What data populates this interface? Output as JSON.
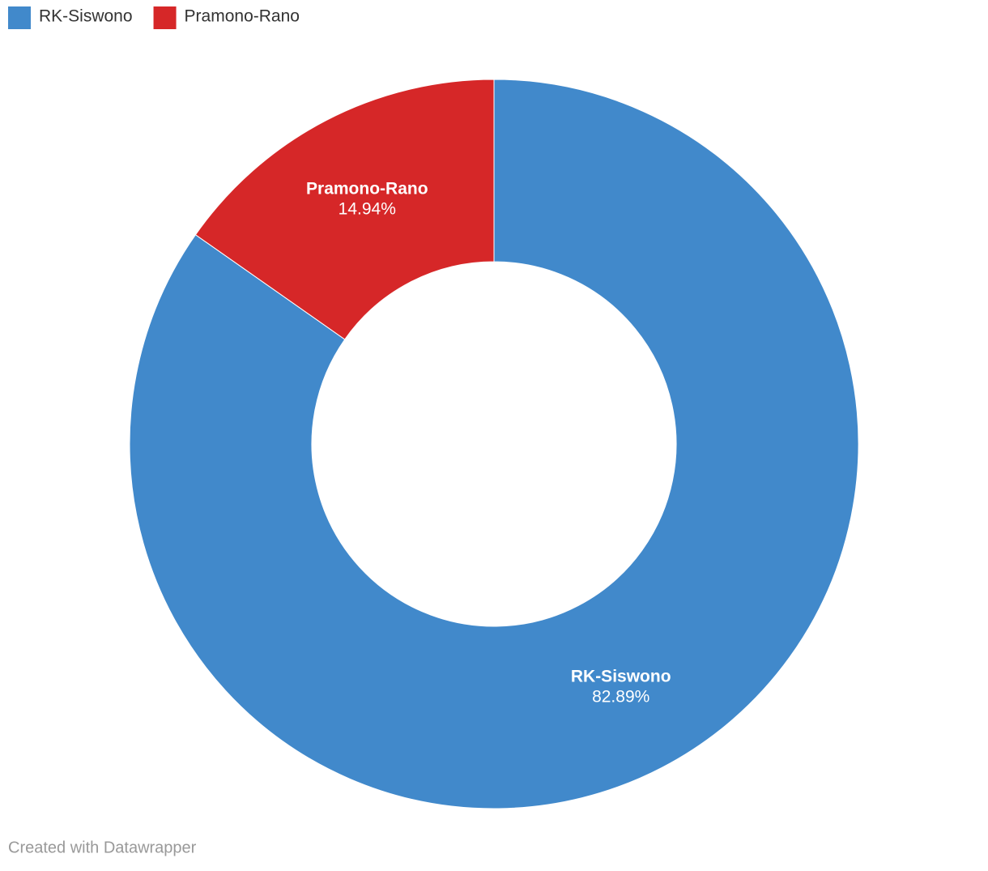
{
  "chart_data": {
    "type": "donut",
    "categories": [
      "RK-Siswono",
      "Pramono-Rano"
    ],
    "values": [
      82.89,
      14.94
    ],
    "value_labels": [
      "82.89%",
      "14.94%"
    ],
    "colors": [
      "#4189cb",
      "#d62728"
    ],
    "legend": "top-left",
    "credit": "Created with Datawrapper"
  }
}
